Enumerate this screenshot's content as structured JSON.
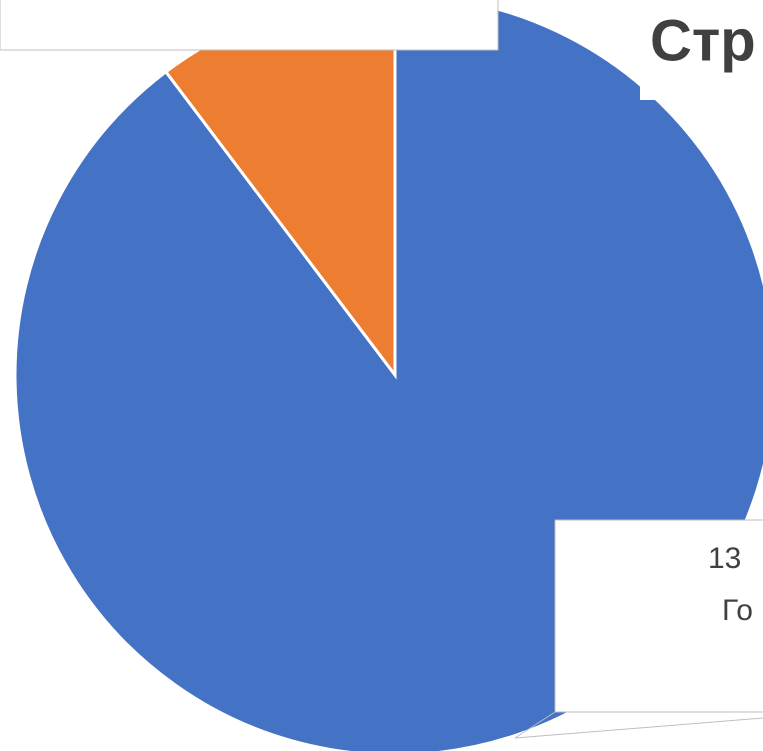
{
  "chart_data": {
    "type": "pie",
    "title": "Стр",
    "categories": [
      null,
      null
    ],
    "values": [
      89.7,
      10.3
    ],
    "colors": [
      "#4472c4",
      "#ed7d31"
    ],
    "annotations": [
      "13",
      "Го"
    ]
  }
}
